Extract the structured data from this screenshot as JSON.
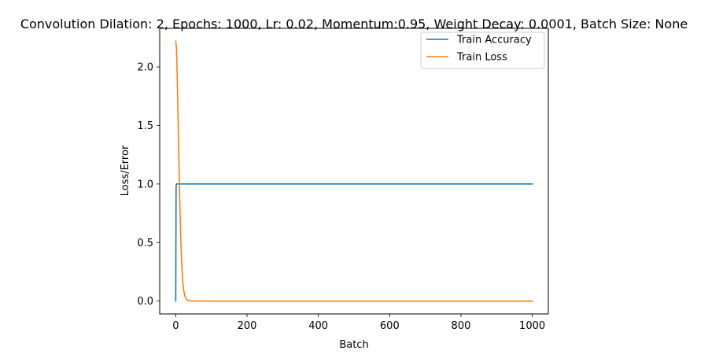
{
  "chart_data": {
    "type": "line",
    "title": "Convolution Dilation: 2, Epochs: 1000, Lr: 0.02, Momentum:0.95, Weight Decay: 0.0001, Batch Size: None",
    "xlabel": "Batch",
    "ylabel": "Loss/Error",
    "xlim": [
      -45,
      1045
    ],
    "ylim": [
      -0.11,
      2.33
    ],
    "x_ticks": [
      0,
      200,
      400,
      600,
      800,
      1000
    ],
    "y_ticks": [
      0.0,
      0.5,
      1.0,
      1.5,
      2.0
    ],
    "x_tick_labels": [
      "0",
      "200",
      "400",
      "600",
      "800",
      "1000"
    ],
    "y_tick_labels": [
      "0.0",
      "0.5",
      "1.0",
      "1.5",
      "2.0"
    ],
    "grid": false,
    "legend_position": "top-right",
    "series": [
      {
        "name": "Train Accuracy",
        "color": "#1f77b4",
        "x": [
          0,
          1,
          2,
          3,
          4,
          5,
          10,
          50,
          100,
          200,
          300,
          400,
          500,
          600,
          700,
          800,
          900,
          1000
        ],
        "y": [
          0.0,
          0.98,
          1.0,
          1.0,
          1.0,
          1.0,
          1.0,
          1.0,
          1.0,
          1.0,
          1.0,
          1.0,
          1.0,
          1.0,
          1.0,
          1.0,
          1.0,
          1.0
        ]
      },
      {
        "name": "Train Loss",
        "color": "#ff7f0e",
        "x": [
          0,
          2,
          4,
          6,
          8,
          10,
          12,
          14,
          16,
          18,
          20,
          22,
          25,
          28,
          32,
          36,
          40,
          50,
          100,
          200,
          400,
          600,
          800,
          1000
        ],
        "y": [
          2.22,
          2.16,
          1.94,
          1.64,
          1.33,
          1.03,
          0.77,
          0.55,
          0.38,
          0.25,
          0.16,
          0.1,
          0.05,
          0.025,
          0.01,
          0.004,
          0.002,
          0.0005,
          0.0,
          0.0,
          0.0,
          0.0,
          0.0,
          0.0
        ]
      }
    ]
  }
}
